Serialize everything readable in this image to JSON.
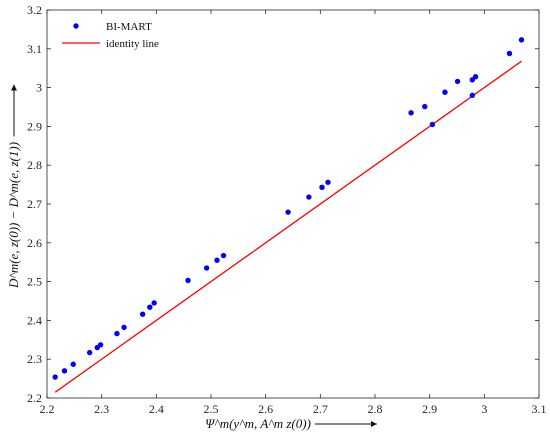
{
  "chart_data": {
    "type": "scatter",
    "xlabel": "Ψ^m(y^m, A^m z(0))",
    "ylabel": "D^m(e, z(0)) − D^m(e, z(1))",
    "xlim": [
      2.2,
      3.1
    ],
    "ylim": [
      2.2,
      3.2
    ],
    "xticks": [
      "2.2",
      "2.3",
      "2.4",
      "2.5",
      "2.6",
      "2.7",
      "2.8",
      "2.9",
      "3",
      "3.1"
    ],
    "yticks": [
      "2.2",
      "2.3",
      "2.4",
      "2.5",
      "2.6",
      "2.7",
      "2.8",
      "2.9",
      "3",
      "3.1",
      "3.2"
    ],
    "grid": false,
    "legend_position": "top-left",
    "series": [
      {
        "name": "BI-MART",
        "kind": "scatter",
        "color": "#0000ff",
        "points": [
          [
            2.215,
            2.254
          ],
          [
            2.232,
            2.27
          ],
          [
            2.248,
            2.287
          ],
          [
            2.278,
            2.317
          ],
          [
            2.292,
            2.33
          ],
          [
            2.298,
            2.337
          ],
          [
            2.328,
            2.366
          ],
          [
            2.341,
            2.382
          ],
          [
            2.375,
            2.416
          ],
          [
            2.388,
            2.434
          ],
          [
            2.396,
            2.445
          ],
          [
            2.458,
            2.503
          ],
          [
            2.492,
            2.535
          ],
          [
            2.511,
            2.555
          ],
          [
            2.523,
            2.567
          ],
          [
            2.641,
            2.679
          ],
          [
            2.679,
            2.718
          ],
          [
            2.703,
            2.743
          ],
          [
            2.714,
            2.756
          ],
          [
            2.866,
            2.935
          ],
          [
            2.891,
            2.951
          ],
          [
            2.905,
            2.905
          ],
          [
            2.928,
            2.988
          ],
          [
            2.951,
            3.016
          ],
          [
            2.978,
            2.98
          ],
          [
            2.978,
            3.02
          ],
          [
            2.984,
            3.028
          ],
          [
            3.046,
            3.088
          ],
          [
            3.068,
            3.123
          ]
        ]
      },
      {
        "name": "identity line",
        "kind": "line",
        "color": "#ff0000",
        "points": [
          [
            2.215,
            2.215
          ],
          [
            3.068,
            3.068
          ]
        ]
      }
    ]
  }
}
